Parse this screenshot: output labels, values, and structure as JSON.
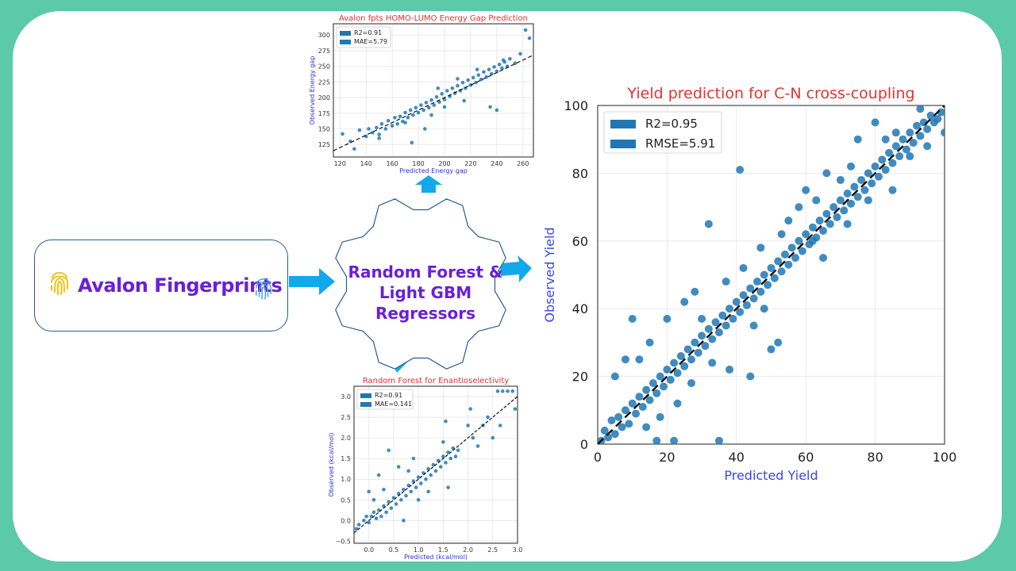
{
  "input": {
    "label": "Avalon Fingerprints"
  },
  "model": {
    "line1": "Random Forest &",
    "line2": "Light GBM",
    "line3": "Regressors"
  },
  "colors": {
    "border": "#5ccaa8",
    "arrow": "#12a9ea",
    "accent_text": "#6a1fd8",
    "point": "#1f77b4",
    "title_red": "#e23030"
  },
  "chart_data": [
    {
      "type": "scatter",
      "title": "Avalon fpts HOMO-LUMO Energy Gap Prediction",
      "xlabel": "Predicted Energy gap",
      "ylabel": "Observed Energy gap",
      "xlim": [
        115,
        268
      ],
      "ylim": [
        105,
        318
      ],
      "xticks": [
        120,
        140,
        160,
        180,
        200,
        220,
        240,
        260
      ],
      "yticks": [
        125,
        150,
        175,
        200,
        225,
        250,
        275,
        300
      ],
      "legend": [
        "R2=0.91",
        "MAE=5.79"
      ],
      "legend_position": "top-left",
      "grid": true,
      "points": [
        [
          122,
          142
        ],
        [
          128,
          130
        ],
        [
          131,
          118
        ],
        [
          135,
          148
        ],
        [
          140,
          138
        ],
        [
          142,
          150
        ],
        [
          145,
          144
        ],
        [
          148,
          152
        ],
        [
          150,
          141
        ],
        [
          152,
          158
        ],
        [
          155,
          150
        ],
        [
          157,
          163
        ],
        [
          160,
          155
        ],
        [
          162,
          168
        ],
        [
          164,
          158
        ],
        [
          166,
          170
        ],
        [
          168,
          162
        ],
        [
          170,
          176
        ],
        [
          172,
          168
        ],
        [
          174,
          180
        ],
        [
          176,
          172
        ],
        [
          178,
          184
        ],
        [
          180,
          176
        ],
        [
          182,
          188
        ],
        [
          184,
          180
        ],
        [
          186,
          192
        ],
        [
          188,
          184
        ],
        [
          190,
          196
        ],
        [
          192,
          188
        ],
        [
          194,
          201
        ],
        [
          196,
          193
        ],
        [
          198,
          206
        ],
        [
          200,
          197
        ],
        [
          202,
          211
        ],
        [
          204,
          202
        ],
        [
          206,
          215
        ],
        [
          208,
          207
        ],
        [
          210,
          219
        ],
        [
          212,
          211
        ],
        [
          214,
          224
        ],
        [
          216,
          215
        ],
        [
          218,
          228
        ],
        [
          220,
          220
        ],
        [
          222,
          232
        ],
        [
          224,
          224
        ],
        [
          226,
          236
        ],
        [
          228,
          229
        ],
        [
          230,
          241
        ],
        [
          232,
          233
        ],
        [
          234,
          245
        ],
        [
          236,
          238
        ],
        [
          238,
          249
        ],
        [
          240,
          242
        ],
        [
          242,
          253
        ],
        [
          244,
          247
        ],
        [
          246,
          257
        ],
        [
          248,
          250
        ],
        [
          250,
          262
        ],
        [
          254,
          255
        ],
        [
          258,
          270
        ],
        [
          262,
          308
        ],
        [
          265,
          295
        ],
        [
          240,
          180
        ],
        [
          235,
          185
        ],
        [
          185,
          150
        ],
        [
          175,
          128
        ],
        [
          170,
          160
        ],
        [
          195,
          215
        ],
        [
          215,
          195
        ],
        [
          245,
          260
        ],
        [
          150,
          135
        ],
        [
          225,
          245
        ],
        [
          210,
          230
        ],
        [
          190,
          172
        ],
        [
          200,
          185
        ]
      ]
    },
    {
      "type": "scatter",
      "title": "Yield prediction for C-N cross-coupling",
      "xlabel": "Predicted Yield",
      "ylabel": "Observed Yield",
      "xlim": [
        0,
        100
      ],
      "ylim": [
        0,
        100
      ],
      "xticks": [
        0,
        20,
        40,
        60,
        80,
        100
      ],
      "yticks": [
        0,
        20,
        40,
        60,
        80,
        100
      ],
      "legend": [
        "R2=0.95",
        "RMSE=5.91"
      ],
      "legend_position": "top-left",
      "grid": true,
      "points": [
        [
          1,
          1
        ],
        [
          2,
          4
        ],
        [
          3,
          2
        ],
        [
          4,
          7
        ],
        [
          5,
          3
        ],
        [
          6,
          8
        ],
        [
          7,
          5
        ],
        [
          8,
          10
        ],
        [
          9,
          6
        ],
        [
          10,
          12
        ],
        [
          11,
          9
        ],
        [
          12,
          14
        ],
        [
          13,
          11
        ],
        [
          14,
          16
        ],
        [
          15,
          13
        ],
        [
          16,
          18
        ],
        [
          17,
          15
        ],
        [
          18,
          20
        ],
        [
          19,
          17
        ],
        [
          20,
          22
        ],
        [
          21,
          19
        ],
        [
          22,
          24
        ],
        [
          23,
          21
        ],
        [
          24,
          26
        ],
        [
          25,
          23
        ],
        [
          26,
          28
        ],
        [
          27,
          25
        ],
        [
          28,
          30
        ],
        [
          29,
          27
        ],
        [
          30,
          32
        ],
        [
          31,
          29
        ],
        [
          32,
          34
        ],
        [
          33,
          31
        ],
        [
          34,
          36
        ],
        [
          35,
          33
        ],
        [
          36,
          38
        ],
        [
          37,
          35
        ],
        [
          38,
          40
        ],
        [
          39,
          37
        ],
        [
          40,
          42
        ],
        [
          41,
          39
        ],
        [
          42,
          44
        ],
        [
          43,
          41
        ],
        [
          44,
          46
        ],
        [
          45,
          43
        ],
        [
          46,
          48
        ],
        [
          47,
          45
        ],
        [
          48,
          50
        ],
        [
          49,
          47
        ],
        [
          50,
          52
        ],
        [
          51,
          49
        ],
        [
          52,
          54
        ],
        [
          53,
          51
        ],
        [
          54,
          56
        ],
        [
          55,
          53
        ],
        [
          56,
          58
        ],
        [
          57,
          55
        ],
        [
          58,
          60
        ],
        [
          59,
          57
        ],
        [
          60,
          62
        ],
        [
          61,
          59
        ],
        [
          62,
          64
        ],
        [
          63,
          61
        ],
        [
          64,
          66
        ],
        [
          65,
          63
        ],
        [
          66,
          68
        ],
        [
          67,
          65
        ],
        [
          68,
          70
        ],
        [
          69,
          67
        ],
        [
          70,
          72
        ],
        [
          71,
          69
        ],
        [
          72,
          74
        ],
        [
          73,
          71
        ],
        [
          74,
          76
        ],
        [
          75,
          73
        ],
        [
          76,
          78
        ],
        [
          77,
          75
        ],
        [
          78,
          80
        ],
        [
          79,
          77
        ],
        [
          80,
          82
        ],
        [
          81,
          79
        ],
        [
          82,
          84
        ],
        [
          83,
          81
        ],
        [
          84,
          86
        ],
        [
          85,
          83
        ],
        [
          86,
          88
        ],
        [
          87,
          85
        ],
        [
          88,
          90
        ],
        [
          89,
          87
        ],
        [
          90,
          92
        ],
        [
          91,
          89
        ],
        [
          92,
          94
        ],
        [
          93,
          91
        ],
        [
          94,
          95
        ],
        [
          95,
          93
        ],
        [
          96,
          97
        ],
        [
          97,
          95
        ],
        [
          98,
          96
        ],
        [
          99,
          98
        ],
        [
          100,
          92
        ],
        [
          32,
          65
        ],
        [
          41,
          81
        ],
        [
          10,
          37
        ],
        [
          20,
          37
        ],
        [
          30,
          37
        ],
        [
          44,
          20
        ],
        [
          50,
          28
        ],
        [
          52,
          30
        ],
        [
          35,
          1
        ],
        [
          17,
          1
        ],
        [
          22,
          1
        ],
        [
          5,
          20
        ],
        [
          8,
          25
        ],
        [
          15,
          30
        ],
        [
          25,
          42
        ],
        [
          28,
          45
        ],
        [
          55,
          66
        ],
        [
          60,
          75
        ],
        [
          62,
          60
        ],
        [
          65,
          55
        ],
        [
          45,
          35
        ],
        [
          48,
          40
        ],
        [
          38,
          22
        ],
        [
          75,
          90
        ],
        [
          80,
          95
        ],
        [
          70,
          78
        ],
        [
          85,
          75
        ],
        [
          90,
          85
        ],
        [
          14,
          5
        ],
        [
          23,
          12
        ],
        [
          33,
          24
        ],
        [
          42,
          52
        ],
        [
          58,
          70
        ],
        [
          66,
          80
        ],
        [
          72,
          65
        ],
        [
          78,
          72
        ],
        [
          86,
          92
        ],
        [
          95,
          88
        ],
        [
          12,
          25
        ],
        [
          18,
          8
        ],
        [
          27,
          18
        ],
        [
          37,
          48
        ],
        [
          47,
          58
        ],
        [
          53,
          62
        ],
        [
          63,
          72
        ],
        [
          73,
          82
        ],
        [
          83,
          90
        ],
        [
          93,
          99
        ]
      ]
    },
    {
      "type": "scatter",
      "title": "Random Forest for Enantioselectivity",
      "xlabel": "Predicted (kcal/mol)",
      "ylabel": "Observed (kcal/mol)",
      "xlim": [
        -0.3,
        3.0
      ],
      "ylim": [
        -0.55,
        3.25
      ],
      "xticks": [
        0.0,
        0.5,
        1.0,
        1.5,
        2.0,
        2.5,
        3.0
      ],
      "xtick_labels": [
        "0.0",
        "0.5",
        "1.0",
        "1.5",
        "2.0",
        "2.5",
        "3.0"
      ],
      "yticks": [
        -0.5,
        0.0,
        0.5,
        1.0,
        1.5,
        2.0,
        2.5,
        3.0
      ],
      "ytick_labels": [
        "−0.5",
        "0.0",
        "0.5",
        "1.0",
        "1.5",
        "2.0",
        "2.5",
        "3.0"
      ],
      "legend": [
        "R2=0.91",
        "MAE=0.141"
      ],
      "legend_position": "top-left",
      "grid": true,
      "points": [
        [
          -0.25,
          -0.2
        ],
        [
          -0.2,
          -0.1
        ],
        [
          -0.1,
          0.0
        ],
        [
          -0.05,
          0.1
        ],
        [
          0.0,
          -0.05
        ],
        [
          0.05,
          0.1
        ],
        [
          0.1,
          0.2
        ],
        [
          0.15,
          0.05
        ],
        [
          0.2,
          0.25
        ],
        [
          0.25,
          0.1
        ],
        [
          0.3,
          0.35
        ],
        [
          0.35,
          0.2
        ],
        [
          0.4,
          0.45
        ],
        [
          0.45,
          0.3
        ],
        [
          0.5,
          0.55
        ],
        [
          0.55,
          0.4
        ],
        [
          0.6,
          0.65
        ],
        [
          0.65,
          0.5
        ],
        [
          0.7,
          0.75
        ],
        [
          0.75,
          0.6
        ],
        [
          0.8,
          0.85
        ],
        [
          0.85,
          0.7
        ],
        [
          0.9,
          0.95
        ],
        [
          0.95,
          0.8
        ],
        [
          1.0,
          1.05
        ],
        [
          1.05,
          0.9
        ],
        [
          1.1,
          1.15
        ],
        [
          1.15,
          1.0
        ],
        [
          1.2,
          1.25
        ],
        [
          1.25,
          1.1
        ],
        [
          1.3,
          1.35
        ],
        [
          1.35,
          1.2
        ],
        [
          1.4,
          1.45
        ],
        [
          1.45,
          1.3
        ],
        [
          1.5,
          1.55
        ],
        [
          1.55,
          1.4
        ],
        [
          1.6,
          1.65
        ],
        [
          1.65,
          1.5
        ],
        [
          1.7,
          1.75
        ],
        [
          1.75,
          1.55
        ],
        [
          1.8,
          1.7
        ],
        [
          2.0,
          2.3
        ],
        [
          2.05,
          2.7
        ],
        [
          2.1,
          2.0
        ],
        [
          2.2,
          1.8
        ],
        [
          2.3,
          2.3
        ],
        [
          2.4,
          2.5
        ],
        [
          2.6,
          3.13
        ],
        [
          2.7,
          3.13
        ],
        [
          2.8,
          3.13
        ],
        [
          2.9,
          3.13
        ],
        [
          2.95,
          2.7
        ],
        [
          2.65,
          2.3
        ],
        [
          2.5,
          2.0
        ],
        [
          0.3,
          0.75
        ],
        [
          0.4,
          1.7
        ],
        [
          0.2,
          1.1
        ],
        [
          0.1,
          0.5
        ],
        [
          0.6,
          1.3
        ],
        [
          0.9,
          1.5
        ],
        [
          1.0,
          0.5
        ],
        [
          1.2,
          0.7
        ],
        [
          1.5,
          1.9
        ],
        [
          1.55,
          2.4
        ],
        [
          1.6,
          0.8
        ],
        [
          0.0,
          0.7
        ],
        [
          0.7,
          0.0
        ],
        [
          0.8,
          1.2
        ]
      ]
    }
  ]
}
